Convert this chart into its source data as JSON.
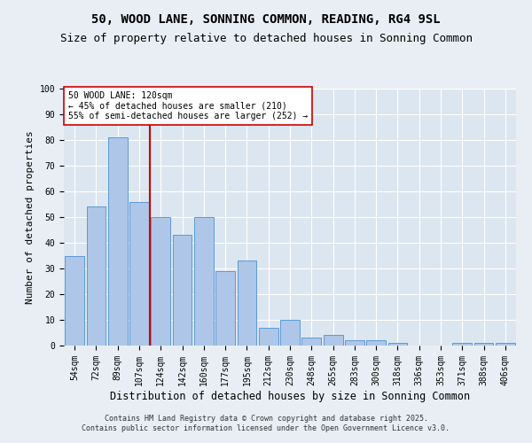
{
  "title": "50, WOOD LANE, SONNING COMMON, READING, RG4 9SL",
  "subtitle": "Size of property relative to detached houses in Sonning Common",
  "xlabel": "Distribution of detached houses by size in Sonning Common",
  "ylabel": "Number of detached properties",
  "bar_labels": [
    "54sqm",
    "72sqm",
    "89sqm",
    "107sqm",
    "124sqm",
    "142sqm",
    "160sqm",
    "177sqm",
    "195sqm",
    "212sqm",
    "230sqm",
    "248sqm",
    "265sqm",
    "283sqm",
    "300sqm",
    "318sqm",
    "336sqm",
    "353sqm",
    "371sqm",
    "388sqm",
    "406sqm"
  ],
  "bar_values": [
    35,
    54,
    81,
    56,
    50,
    43,
    50,
    29,
    33,
    7,
    10,
    3,
    4,
    2,
    2,
    1,
    0,
    0,
    1,
    1,
    1
  ],
  "bar_color": "#aec6e8",
  "bar_edge_color": "#5b9bd5",
  "vline_color": "#cc0000",
  "annotation_title": "50 WOOD LANE: 120sqm",
  "annotation_line1": "← 45% of detached houses are smaller (210)",
  "annotation_line2": "55% of semi-detached houses are larger (252) →",
  "annotation_box_color": "#ffffff",
  "annotation_box_edge": "#cc0000",
  "bg_color": "#e8eef4",
  "plot_bg_color": "#dce6f0",
  "grid_color": "#ffffff",
  "footer1": "Contains HM Land Registry data © Crown copyright and database right 2025.",
  "footer2": "Contains public sector information licensed under the Open Government Licence v3.0.",
  "ylim": [
    0,
    100
  ],
  "title_fontsize": 10,
  "subtitle_fontsize": 9,
  "tick_fontsize": 7,
  "ylabel_fontsize": 8,
  "xlabel_fontsize": 8.5,
  "footer_fontsize": 6,
  "annotation_fontsize": 7
}
